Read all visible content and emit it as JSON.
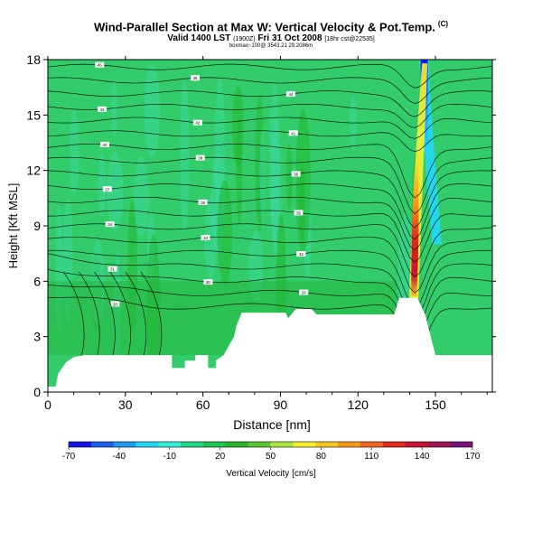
{
  "header": {
    "title": "Wind-Parallel Section at Max W: Vertical Velocity & Pot.Temp.",
    "title_mark": "(C)",
    "valid_main": "Valid 1400 LST",
    "valid_utc": "(1900Z)",
    "valid_date": "Fri 31 Oct 2008",
    "valid_run": "[18hr cst@22535]",
    "subline": "boxmax~100@ 3543.21 29.2086m"
  },
  "chart_data": {
    "type": "heatmap",
    "xlabel": "Distance [nm]",
    "ylabel": "Height [Kft MSL]",
    "xlim": [
      0,
      172
    ],
    "ylim": [
      0,
      18
    ],
    "x_ticks": [
      0,
      30,
      60,
      90,
      120,
      150
    ],
    "y_ticks": [
      0,
      3,
      6,
      9,
      12,
      15,
      18
    ],
    "colorbar": {
      "label": "Vertical Velocity [cm/s]",
      "tick_labels": [
        "-70",
        "-40",
        "-10",
        "20",
        "50",
        "80",
        "110",
        "140",
        "170"
      ],
      "colors": [
        "#1414e6",
        "#1e5ef0",
        "#1e9af5",
        "#22d7f7",
        "#33f0d0",
        "#22d78c",
        "#1ec350",
        "#2ab42a",
        "#5ac832",
        "#a8e63c",
        "#f5f032",
        "#f5c81e",
        "#f59a19",
        "#f0641e",
        "#e6281e",
        "#c81432",
        "#a01450",
        "#7a1478"
      ]
    },
    "terrain": [
      [
        0,
        0.3
      ],
      [
        3,
        0.3
      ],
      [
        4,
        1.0
      ],
      [
        7,
        1.6
      ],
      [
        10,
        1.9
      ],
      [
        14,
        2.0
      ],
      [
        48,
        2.0
      ],
      [
        48,
        1.3
      ],
      [
        53,
        1.3
      ],
      [
        53,
        1.7
      ],
      [
        57,
        1.7
      ],
      [
        57,
        2.0
      ],
      [
        62,
        2.0
      ],
      [
        62,
        1.3
      ],
      [
        65,
        1.3
      ],
      [
        65,
        1.7
      ],
      [
        68,
        2.0
      ],
      [
        70,
        2.5
      ],
      [
        72,
        3.0
      ],
      [
        73,
        3.6
      ],
      [
        75,
        4.3
      ],
      [
        92,
        4.3
      ],
      [
        93,
        4.0
      ],
      [
        96,
        4.5
      ],
      [
        102,
        4.5
      ],
      [
        104,
        4.2
      ],
      [
        134,
        4.2
      ],
      [
        136,
        5.1
      ],
      [
        143,
        5.1
      ],
      [
        146,
        4.2
      ],
      [
        150,
        2.0
      ],
      [
        172,
        2.0
      ]
    ],
    "isentrope_labels": [
      "46",
      "45",
      "44",
      "43",
      "42",
      "41",
      "40",
      "39",
      "38",
      "37",
      "36",
      "35",
      "34",
      "33",
      "32",
      "31",
      "30",
      "29",
      "28"
    ],
    "updraft_core": {
      "x": 142,
      "y_range": [
        5,
        17
      ],
      "peak_cm_s": 170
    },
    "downdraft_core": {
      "x": 146,
      "y_range": [
        13,
        18
      ],
      "min_cm_s": -70
    }
  }
}
